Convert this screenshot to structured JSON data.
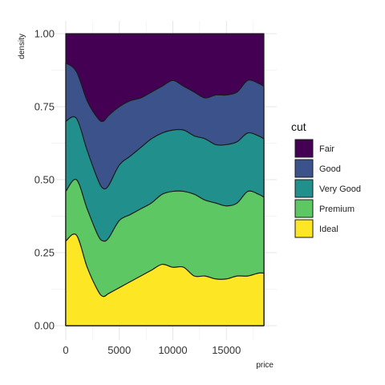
{
  "chart_data": {
    "type": "area",
    "subtype": "stacked conditional density (fill to 1)",
    "xlabel": "price",
    "ylabel": "density",
    "xlim": [
      0,
      18500
    ],
    "ylim": [
      0,
      1
    ],
    "xticks": [
      0,
      5000,
      10000,
      15000
    ],
    "xtick_labels": [
      "0",
      "5000",
      "10000",
      "15000"
    ],
    "yticks": [
      0,
      0.25,
      0.5,
      0.75,
      1
    ],
    "ytick_labels": [
      "0.00",
      "0.25",
      "0.50",
      "0.75",
      "1.00"
    ],
    "grid": true,
    "legend": {
      "title": "cut",
      "position": "right"
    },
    "x": [
      326,
      1000,
      2000,
      3000,
      3500,
      4000,
      5000,
      6000,
      7000,
      8000,
      9000,
      10000,
      11000,
      12000,
      13000,
      14000,
      15000,
      16000,
      17000,
      18000,
      18500
    ],
    "series": [
      {
        "name": "Fair",
        "color": "#440154"
      },
      {
        "name": "Good",
        "color": "#3B528B"
      },
      {
        "name": "Very Good",
        "color": "#21908C"
      },
      {
        "name": "Premium",
        "color": "#5DC863"
      },
      {
        "name": "Ideal",
        "color": "#FDE725"
      }
    ],
    "cumulative_upper_bounds": {
      "Ideal": [
        0.29,
        0.31,
        0.2,
        0.12,
        0.1,
        0.11,
        0.13,
        0.15,
        0.17,
        0.19,
        0.21,
        0.2,
        0.2,
        0.17,
        0.17,
        0.16,
        0.16,
        0.17,
        0.17,
        0.18,
        0.18
      ],
      "Premium": [
        0.46,
        0.5,
        0.4,
        0.31,
        0.29,
        0.3,
        0.36,
        0.38,
        0.4,
        0.42,
        0.45,
        0.46,
        0.46,
        0.45,
        0.43,
        0.42,
        0.41,
        0.42,
        0.46,
        0.45,
        0.44
      ],
      "Very Good": [
        0.7,
        0.71,
        0.6,
        0.5,
        0.47,
        0.48,
        0.55,
        0.58,
        0.61,
        0.64,
        0.66,
        0.67,
        0.67,
        0.65,
        0.64,
        0.62,
        0.62,
        0.63,
        0.66,
        0.65,
        0.64
      ],
      "Good": [
        0.9,
        0.87,
        0.77,
        0.71,
        0.7,
        0.72,
        0.75,
        0.77,
        0.78,
        0.8,
        0.82,
        0.84,
        0.82,
        0.8,
        0.78,
        0.79,
        0.79,
        0.8,
        0.84,
        0.83,
        0.82
      ],
      "Fair": [
        1,
        1,
        1,
        1,
        1,
        1,
        1,
        1,
        1,
        1,
        1,
        1,
        1,
        1,
        1,
        1,
        1,
        1,
        1,
        1,
        1
      ]
    }
  }
}
